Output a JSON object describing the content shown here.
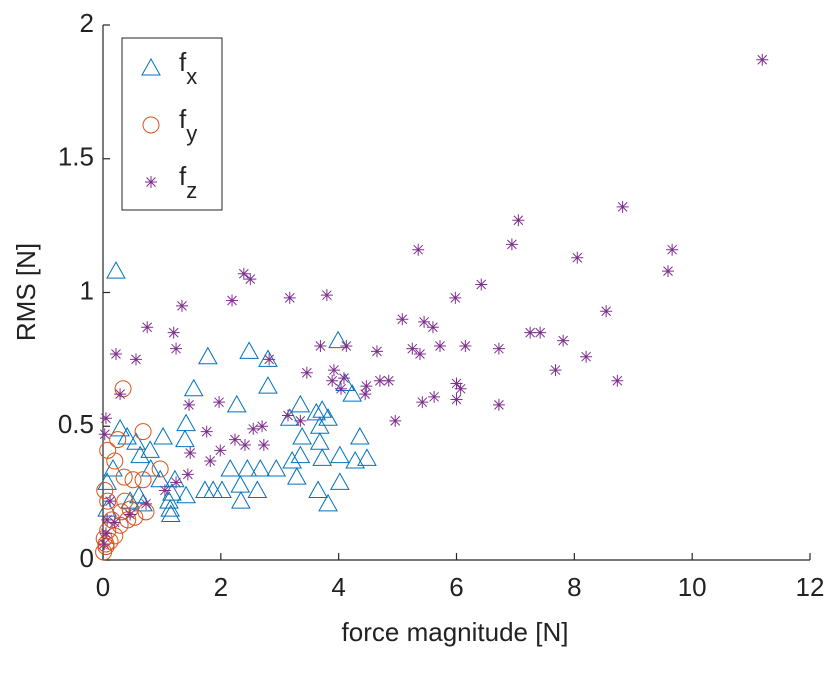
{
  "chart_data": {
    "type": "scatter",
    "xlabel": "force magnitude [N]",
    "ylabel": "RMS [N]",
    "xlim": [
      0,
      12
    ],
    "ylim": [
      0,
      2
    ],
    "xticks": [
      0,
      2,
      4,
      6,
      8,
      10,
      12
    ],
    "yticks": [
      0,
      0.5,
      1,
      1.5,
      2
    ],
    "legend": "northwest",
    "series": [
      {
        "name": "fx",
        "color": "#0072bd",
        "marker": "triangle",
        "x": [
          0.22,
          3.99,
          2.48,
          1.78,
          2.8,
          2.8,
          4.23,
          4.11,
          1.54,
          2.27,
          3.35,
          3.62,
          3.72,
          3.82,
          3.17,
          3.68,
          1.41,
          4.36,
          3.38,
          3.68,
          1.02,
          1.39,
          0.29,
          0.41,
          0.56,
          0.8,
          0.63,
          3.35,
          3.21,
          3.72,
          4.02,
          4.48,
          4.28,
          2.94,
          3.29,
          2.45,
          2.33,
          2.62,
          1.87,
          2.02,
          1.73,
          1.22,
          0.97,
          0.81,
          1.17,
          1.41,
          0.61,
          0.68,
          1.12,
          1.14,
          1.15,
          2.34,
          3.65,
          3.82,
          4.02,
          0.07,
          0.07,
          0.17,
          0.46,
          2.67,
          2.16
        ],
        "y": [
          1.08,
          0.82,
          0.78,
          0.76,
          0.75,
          0.65,
          0.62,
          0.66,
          0.64,
          0.58,
          0.58,
          0.55,
          0.56,
          0.53,
          0.53,
          0.5,
          0.51,
          0.46,
          0.46,
          0.44,
          0.46,
          0.45,
          0.49,
          0.46,
          0.44,
          0.41,
          0.39,
          0.39,
          0.37,
          0.38,
          0.39,
          0.38,
          0.37,
          0.34,
          0.31,
          0.34,
          0.28,
          0.26,
          0.26,
          0.26,
          0.26,
          0.3,
          0.3,
          0.34,
          0.25,
          0.24,
          0.24,
          0.21,
          0.22,
          0.19,
          0.17,
          0.22,
          0.26,
          0.21,
          0.29,
          0.29,
          0.19,
          0.34,
          0.22,
          0.34,
          0.34
        ]
      },
      {
        "name": "fy",
        "color": "#d95319",
        "marker": "circle",
        "x": [
          0.34,
          0.68,
          0.97,
          0.68,
          0.51,
          0.36,
          0.2,
          0.08,
          0.25,
          0.46,
          0.73,
          0.42,
          0.29,
          0.15,
          0.08,
          0.02,
          0.05,
          0.2,
          0.31,
          0.08,
          0.03,
          0.05,
          0.01,
          0.12,
          0.37,
          0.54
        ],
        "y": [
          0.64,
          0.48,
          0.34,
          0.3,
          0.3,
          0.31,
          0.37,
          0.41,
          0.45,
          0.19,
          0.18,
          0.15,
          0.13,
          0.15,
          0.11,
          0.08,
          0.06,
          0.09,
          0.18,
          0.22,
          0.26,
          0.05,
          0.03,
          0.07,
          0.22,
          0.16
        ]
      },
      {
        "name": "fz",
        "color": "#7e2f8e",
        "marker": "asterisk",
        "x": [
          11.19,
          8.82,
          7.05,
          6.94,
          5.35,
          9.66,
          8.05,
          9.59,
          2.39,
          2.5,
          6.42,
          2.19,
          3.17,
          3.8,
          5.98,
          1.34,
          0.75,
          1.2,
          5.08,
          5.45,
          5.6,
          8.54,
          7.42,
          7.25,
          7.81,
          5.72,
          5.25,
          6.72,
          3.69,
          4.13,
          4.65,
          1.24,
          0.22,
          0.56,
          5.38,
          6.15,
          8.2,
          2.82,
          7.68,
          3.92,
          3.46,
          3.89,
          4.09,
          4.7,
          4.85,
          6.0,
          6.07,
          4.04,
          4.47,
          8.73,
          6.0,
          5.62,
          5.42,
          6.72,
          1.97,
          1.46,
          4.45,
          0.29,
          4.96,
          1.76,
          2.7,
          3.14,
          3.35,
          2.24,
          2.41,
          0.05,
          0.03,
          1.48,
          1.82,
          2.55,
          1.99,
          2.73,
          1.44,
          1.24,
          1.05,
          0.73,
          0.46,
          0.2,
          0.05,
          0.02,
          0.07,
          0.12
        ],
        "y": [
          1.87,
          1.32,
          1.27,
          1.18,
          1.16,
          1.16,
          1.13,
          1.08,
          1.07,
          1.05,
          1.03,
          0.97,
          0.98,
          0.99,
          0.98,
          0.95,
          0.87,
          0.85,
          0.9,
          0.89,
          0.87,
          0.93,
          0.85,
          0.85,
          0.82,
          0.8,
          0.79,
          0.79,
          0.8,
          0.8,
          0.78,
          0.79,
          0.77,
          0.75,
          0.77,
          0.8,
          0.76,
          0.75,
          0.71,
          0.71,
          0.7,
          0.67,
          0.68,
          0.67,
          0.67,
          0.66,
          0.64,
          0.64,
          0.65,
          0.67,
          0.6,
          0.61,
          0.59,
          0.58,
          0.59,
          0.58,
          0.62,
          0.62,
          0.52,
          0.48,
          0.5,
          0.54,
          0.52,
          0.45,
          0.43,
          0.53,
          0.47,
          0.4,
          0.37,
          0.49,
          0.41,
          0.43,
          0.32,
          0.29,
          0.26,
          0.21,
          0.17,
          0.14,
          0.1,
          0.06,
          0.15,
          0.22
        ]
      }
    ]
  }
}
